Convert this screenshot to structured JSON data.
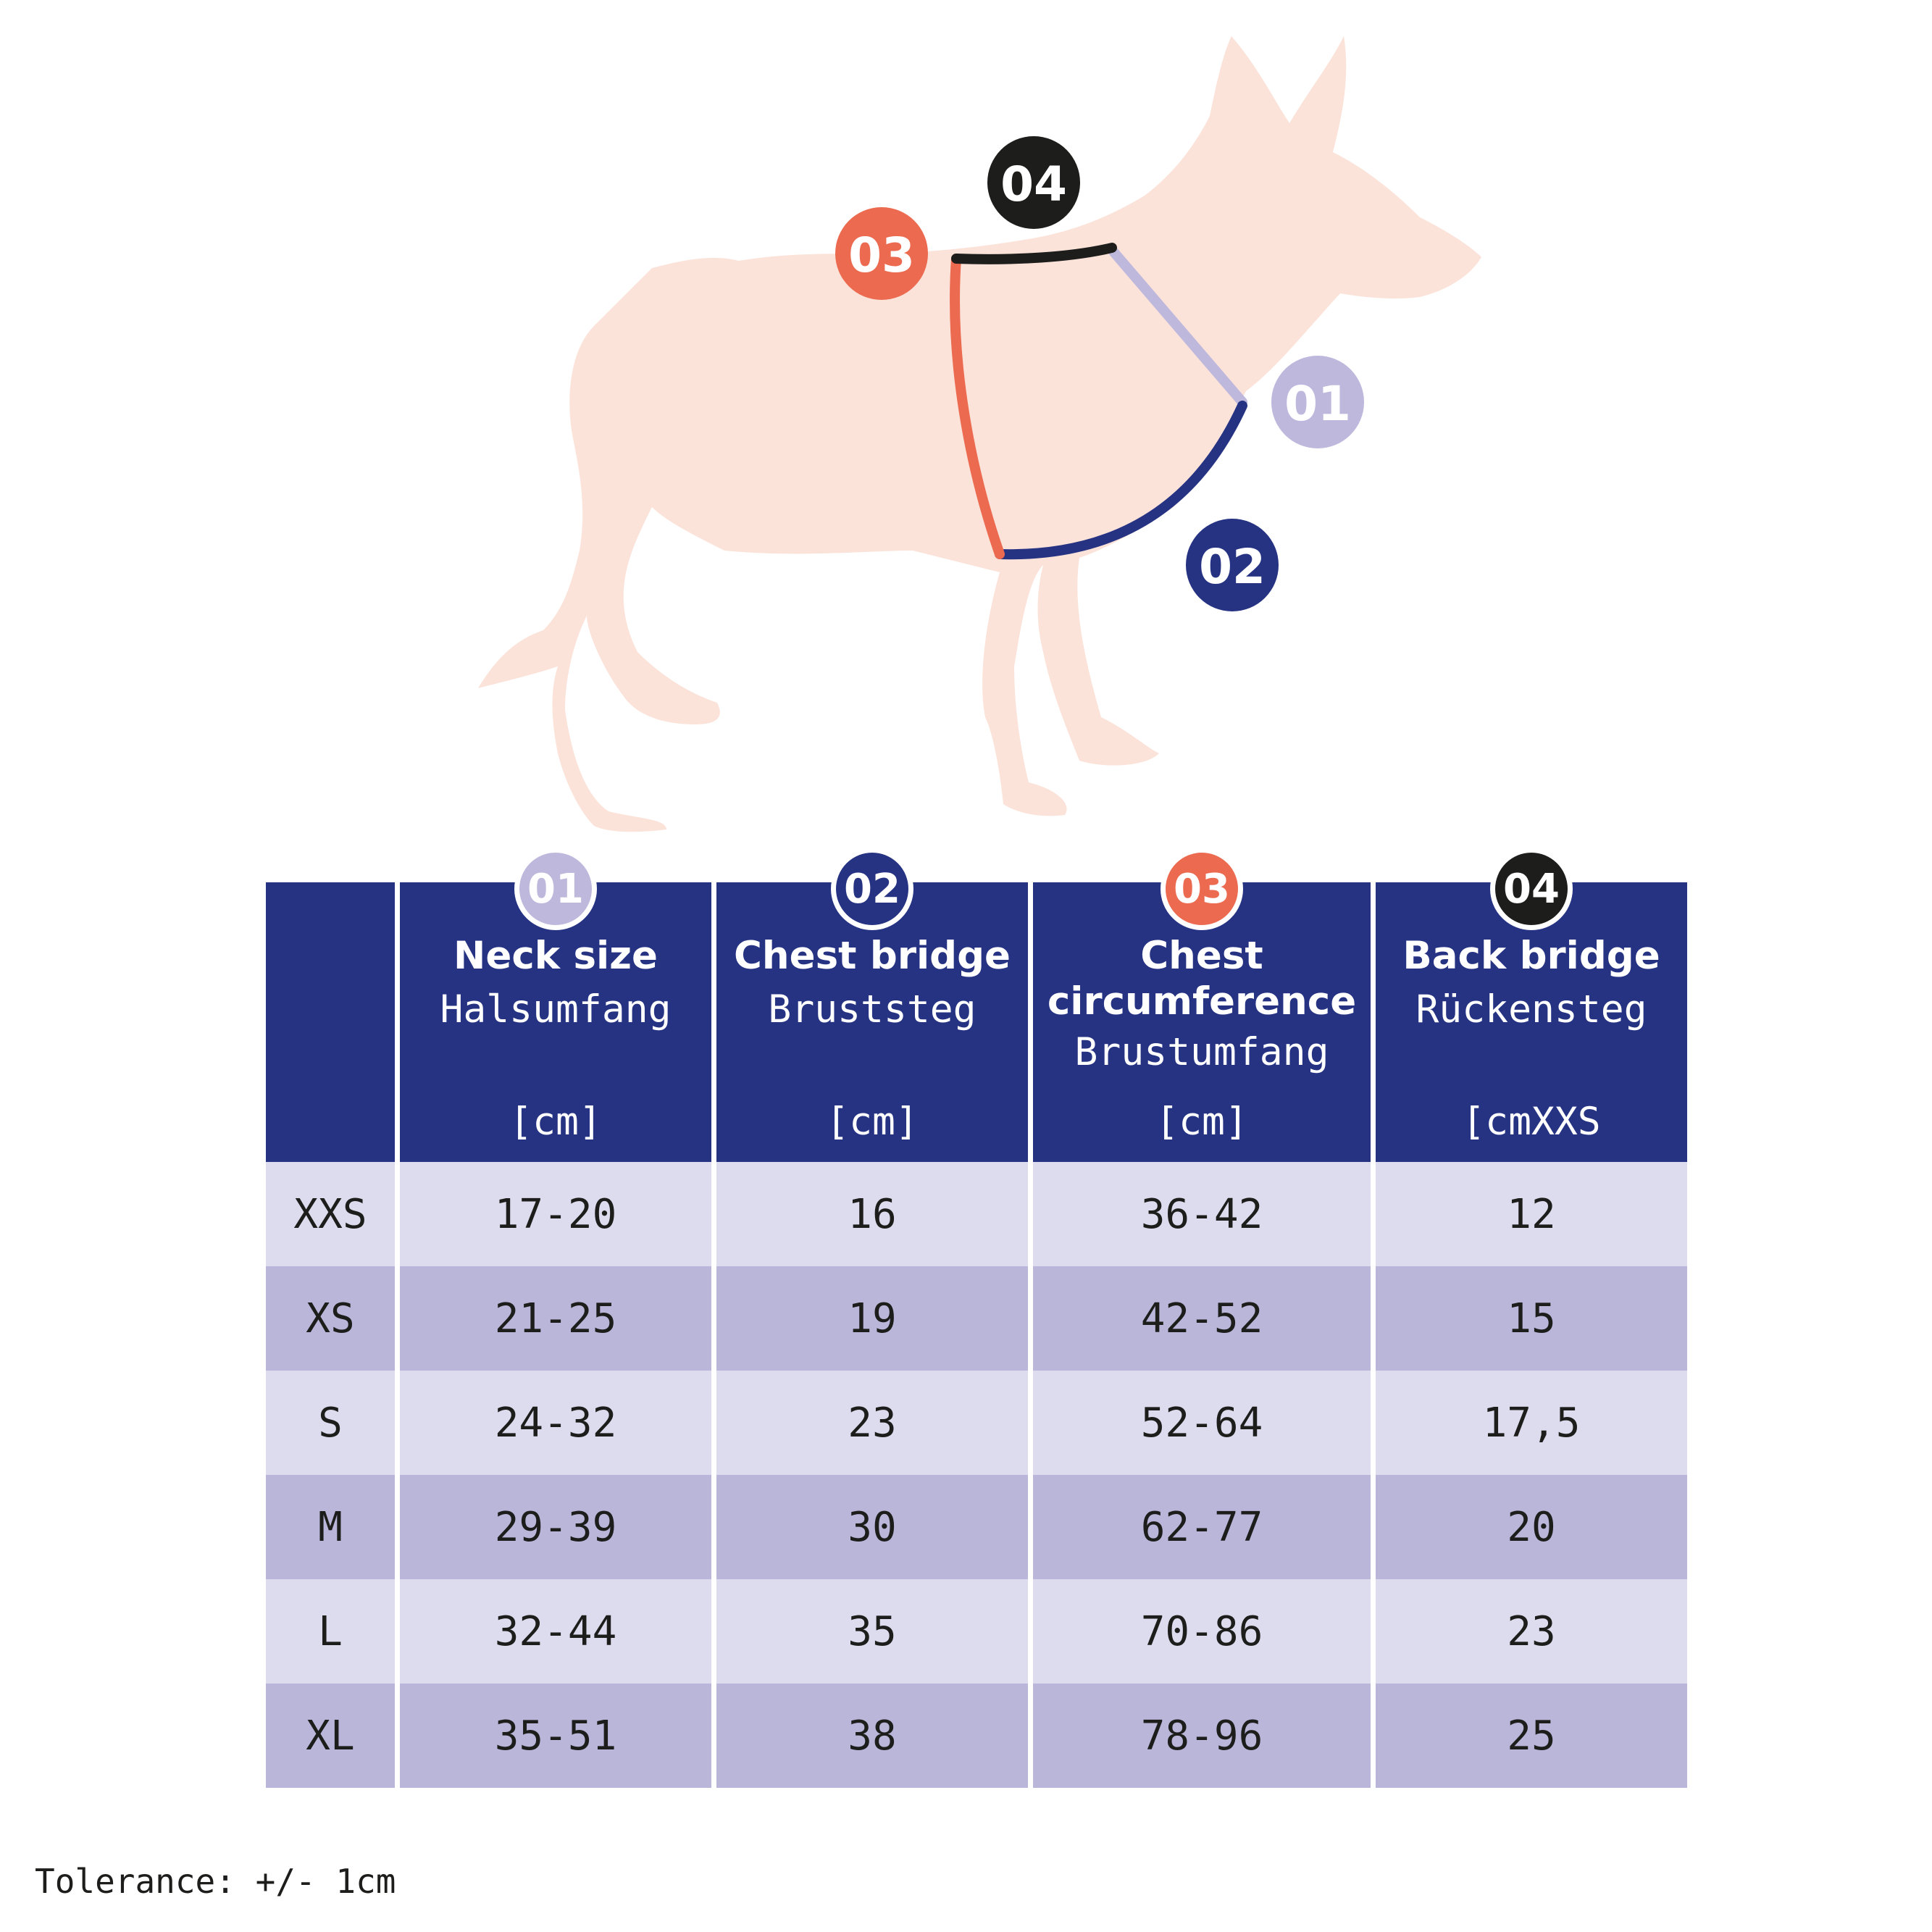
{
  "colors": {
    "dog_silhouette": "#fbe3da",
    "neck": "#bdb8dc",
    "chest_bridge": "#263383",
    "chest_circumference": "#ec6a50",
    "back_bridge": "#1d1d1b",
    "header_bg": "#263383",
    "row_light": "#dcdcee",
    "row_dark": "#b9b6da"
  },
  "figure": {
    "markers": [
      {
        "id": "01",
        "label": "01",
        "part": "neck",
        "color": "#bdb8dc"
      },
      {
        "id": "02",
        "label": "02",
        "part": "chest-bridge",
        "color": "#263383"
      },
      {
        "id": "03",
        "label": "03",
        "part": "chest-circumference",
        "color": "#ec6a50"
      },
      {
        "id": "04",
        "label": "04",
        "part": "back-bridge",
        "color": "#1d1d1b"
      }
    ]
  },
  "table": {
    "columns": [
      {
        "badge": "01",
        "badge_color": "#bdb8dc",
        "title_en": "Neck size",
        "title_de": "Halsumfang",
        "unit": "[cm]"
      },
      {
        "badge": "02",
        "badge_color": "#263383",
        "title_en": "Chest bridge",
        "title_de": "Bruststeg",
        "unit": "[cm]"
      },
      {
        "badge": "03",
        "badge_color": "#ec6a50",
        "title_en_line1": "Chest",
        "title_en_line2": "circumference",
        "title_de": "Brustumfang",
        "unit": "[cm]"
      },
      {
        "badge": "04",
        "badge_color": "#1d1d1b",
        "title_en": "Back bridge",
        "title_de": "Rückensteg",
        "unit": "[cmXXS"
      }
    ],
    "rows": [
      {
        "size": "XXS",
        "neck": "17-20",
        "chest_bridge": "16",
        "chest_circ": "36-42",
        "back_bridge": "12"
      },
      {
        "size": "XS",
        "neck": "21-25",
        "chest_bridge": "19",
        "chest_circ": "42-52",
        "back_bridge": "15"
      },
      {
        "size": "S",
        "neck": "24-32",
        "chest_bridge": "23",
        "chest_circ": "52-64",
        "back_bridge": "17,5"
      },
      {
        "size": "M",
        "neck": "29-39",
        "chest_bridge": "30",
        "chest_circ": "62-77",
        "back_bridge": "20"
      },
      {
        "size": "L",
        "neck": "32-44",
        "chest_bridge": "35",
        "chest_circ": "70-86",
        "back_bridge": "23"
      },
      {
        "size": "XL",
        "neck": "35-51",
        "chest_bridge": "38",
        "chest_circ": "78-96",
        "back_bridge": "25"
      }
    ]
  },
  "footer": {
    "tolerance": "Tolerance: +/- 1cm"
  }
}
